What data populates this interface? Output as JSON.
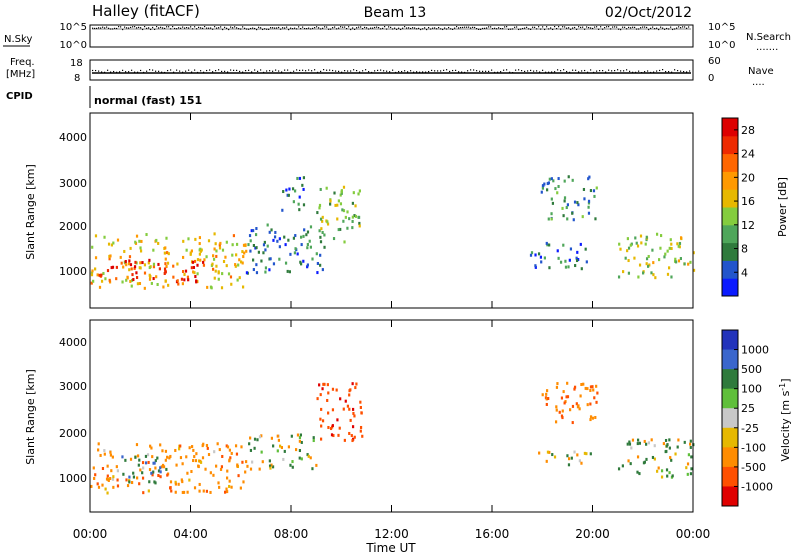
{
  "header": {
    "station": "Halley (fitACF)",
    "beam": "Beam 13",
    "date": "02/Oct/2012"
  },
  "nsky_panel": {
    "left_label": "N.Sky",
    "right_label": "N.Search",
    "left_ticks": [
      "10^5",
      "10^0"
    ],
    "right_ticks": [
      "10^5",
      "10^0"
    ],
    "right_legend_line": "......."
  },
  "freq_panel": {
    "left_label_top": "Freq.",
    "left_label_bottom": "[MHz]",
    "left_ticks": [
      "18",
      "8"
    ],
    "right_label": "Nave",
    "right_ticks": [
      "60",
      "0"
    ],
    "right_legend_line": "...."
  },
  "cpid_panel": {
    "label": "CPID",
    "mode": "normal (fast) 151"
  },
  "x_axis": {
    "label": "Time UT",
    "ticks": [
      "00:00",
      "04:00",
      "08:00",
      "12:00",
      "16:00",
      "20:00",
      "00:00"
    ]
  },
  "power_panel": {
    "ylabel": "Slant Range [km]",
    "yticks": [
      "4000",
      "3000",
      "2000",
      "1000"
    ],
    "colorbar_label": "Power [dB]",
    "colorbar_ticks": [
      "28",
      "24",
      "20",
      "16",
      "12",
      "8",
      "4"
    ],
    "colors": [
      "#0b1bff",
      "#2255cc",
      "#2f7a3c",
      "#4fa65a",
      "#84cc3e",
      "#e6b800",
      "#ff9900",
      "#ff6600",
      "#ee2a00",
      "#dd0000"
    ]
  },
  "velocity_panel": {
    "ylabel": "Slant Range [km]",
    "yticks": [
      "4000",
      "3000",
      "2000",
      "1000"
    ],
    "colorbar_label": "Velocity [m s",
    "colorbar_label_sup": "-1",
    "colorbar_label_close": "]",
    "colorbar_ticks": [
      "1000",
      "500",
      "100",
      "25",
      "-25",
      "-100",
      "-500",
      "-1000"
    ],
    "colors": [
      "#2233bb",
      "#3a66cc",
      "#2f7a3c",
      "#5fbf3a",
      "#c8c8c8",
      "#e6b800",
      "#ff8c00",
      "#ff5000",
      "#e00000"
    ]
  },
  "chart_data": {
    "type": "heatmap",
    "x_range_hours": [
      0,
      24
    ],
    "y_range_km": [
      180,
      4600
    ],
    "power_scale_db": [
      0,
      30
    ],
    "velocity_scale": [
      -1000,
      1000
    ],
    "power_regions": [
      {
        "t0": 0.0,
        "t1": 6.2,
        "r0": 650,
        "r1": 1900,
        "p": 17
      },
      {
        "t0": 0.3,
        "t1": 4.5,
        "r0": 800,
        "r1": 1300,
        "p": 26
      },
      {
        "t0": 6.2,
        "t1": 9.5,
        "r0": 1000,
        "r1": 2100,
        "p": 7
      },
      {
        "t0": 7.5,
        "t1": 8.5,
        "r0": 2400,
        "r1": 3200,
        "p": 6
      },
      {
        "t0": 9.0,
        "t1": 10.8,
        "r0": 1700,
        "r1": 3000,
        "p": 13
      },
      {
        "t0": 17.5,
        "t1": 19.8,
        "r0": 1100,
        "r1": 1700,
        "p": 6
      },
      {
        "t0": 17.9,
        "t1": 20.2,
        "r0": 2200,
        "r1": 3200,
        "p": 8
      },
      {
        "t0": 21.0,
        "t1": 24.0,
        "r0": 900,
        "r1": 1900,
        "p": 14
      }
    ],
    "velocity_regions": [
      {
        "t0": 0.0,
        "t1": 6.2,
        "r0": 650,
        "r1": 1800,
        "v": -300
      },
      {
        "t0": 1.2,
        "t1": 3.0,
        "r0": 850,
        "r1": 1500,
        "v": 400
      },
      {
        "t0": 6.2,
        "t1": 9.0,
        "r0": 1200,
        "r1": 2000,
        "v": 0
      },
      {
        "t0": 9.0,
        "t1": 10.8,
        "r0": 1800,
        "r1": 3200,
        "v": -800
      },
      {
        "t0": 17.5,
        "t1": 20.0,
        "r0": 1300,
        "r1": 1600,
        "v": 0
      },
      {
        "t0": 17.9,
        "t1": 20.2,
        "r0": 2200,
        "r1": 3200,
        "v": -400
      },
      {
        "t0": 21.0,
        "t1": 24.0,
        "r0": 1000,
        "r1": 1900,
        "v": 100
      }
    ]
  }
}
